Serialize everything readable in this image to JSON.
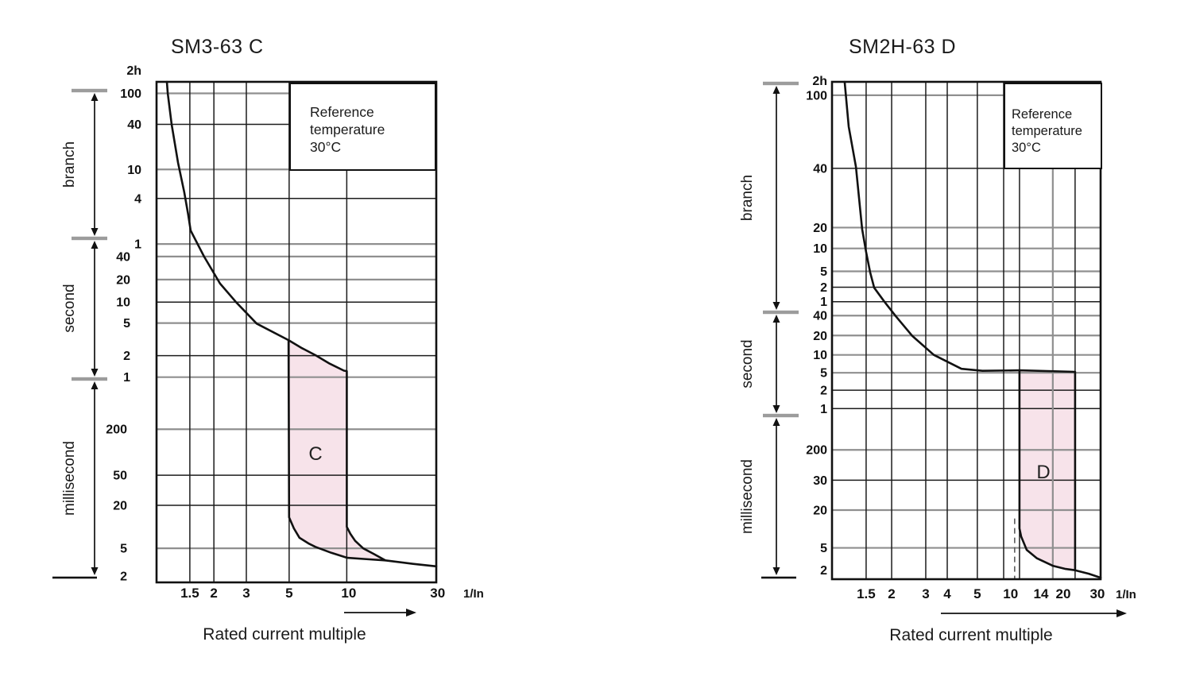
{
  "page": {
    "background": "#ffffff"
  },
  "chart_data": [
    {
      "type": "line",
      "id": "SM3-63-C",
      "title": "SM3-63 C",
      "reference_note_lines": [
        "Reference",
        "temperature",
        "30°C"
      ],
      "x_axis": {
        "caption": "Rated current multiple",
        "unit": "1/In",
        "range_multiple": [
          1,
          30
        ],
        "ticks": [
          {
            "label": "1.5",
            "line": 0.119,
            "lf": 0.119
          },
          {
            "label": "2",
            "line": 0.205,
            "lf": 0.205
          },
          {
            "label": "3",
            "line": 0.321,
            "lf": 0.321
          },
          {
            "label": "5",
            "line": 0.474,
            "lf": 0.474
          },
          {
            "label": "10",
            "line": 0.68,
            "lf": 0.687
          },
          {
            "label": "30",
            "line": null,
            "lf": 1.005
          }
        ],
        "extra_lines": [],
        "dashed_line": null
      },
      "y_axis": {
        "top_label": "2h",
        "ticks": [
          {
            "label": "100",
            "f": 0.023,
            "line": 0.023,
            "gray": true,
            "s": 0
          },
          {
            "label": "40",
            "f": 0.085,
            "line": 0.085,
            "gray": false,
            "s": 0
          },
          {
            "label": "10",
            "f": 0.175,
            "line": 0.175,
            "gray": true,
            "s": 0
          },
          {
            "label": "4",
            "f": 0.233,
            "line": 0.233,
            "gray": false,
            "s": 0
          },
          {
            "label": "1",
            "f": 0.324,
            "line": 0.324,
            "gray": true,
            "s": 0
          },
          {
            "label": "40",
            "f": 0.349,
            "line": 0.349,
            "gray": true,
            "s": 1
          },
          {
            "label": "20",
            "f": 0.395,
            "line": 0.395,
            "gray": true,
            "s": 1
          },
          {
            "label": "10",
            "f": 0.44,
            "line": 0.44,
            "gray": false,
            "s": 1
          },
          {
            "label": "5",
            "f": 0.482,
            "line": 0.482,
            "gray": true,
            "s": 1
          },
          {
            "label": "2",
            "f": 0.547,
            "line": 0.547,
            "gray": false,
            "s": 1
          },
          {
            "label": "1",
            "f": 0.59,
            "line": 0.59,
            "gray": true,
            "s": 1
          },
          {
            "label": "200",
            "f": 0.694,
            "line": 0.694,
            "gray": true,
            "s": 2
          },
          {
            "label": "50",
            "f": 0.786,
            "line": 0.786,
            "gray": false,
            "s": 2
          },
          {
            "label": "20",
            "f": 0.846,
            "line": 0.846,
            "gray": false,
            "s": 2
          },
          {
            "label": "5",
            "f": 0.932,
            "line": 0.932,
            "gray": true,
            "s": 2
          },
          {
            "label": "2",
            "f": 0.987,
            "line": null,
            "gray": false,
            "s": 2
          }
        ]
      },
      "time_sections": [
        {
          "name": "branch"
        },
        {
          "name": "second"
        },
        {
          "name": "millisecond"
        }
      ],
      "band": {
        "label": "C",
        "fill": "#f7e3ea",
        "trip_multiple_range": [
          5,
          10
        ],
        "polygon": [
          [
            0.472,
            0.516
          ],
          [
            0.52,
            0.532
          ],
          [
            0.568,
            0.546
          ],
          [
            0.619,
            0.563
          ],
          [
            0.67,
            0.577
          ],
          [
            0.68,
            0.578
          ],
          [
            0.68,
            0.889
          ],
          [
            0.693,
            0.903
          ],
          [
            0.71,
            0.917
          ],
          [
            0.739,
            0.932
          ],
          [
            0.776,
            0.943
          ],
          [
            0.818,
            0.956
          ],
          [
            0.761,
            0.954
          ],
          [
            0.682,
            0.951
          ],
          [
            0.625,
            0.941
          ],
          [
            0.568,
            0.929
          ],
          [
            0.543,
            0.922
          ],
          [
            0.511,
            0.911
          ],
          [
            0.491,
            0.892
          ],
          [
            0.474,
            0.87
          ]
        ]
      },
      "curves": {
        "upper_trip": [
          [
            0.037,
            0.0
          ],
          [
            0.04,
            0.023
          ],
          [
            0.054,
            0.085
          ],
          [
            0.077,
            0.162
          ],
          [
            0.099,
            0.22
          ],
          [
            0.113,
            0.265
          ],
          [
            0.122,
            0.297
          ],
          [
            0.17,
            0.349
          ],
          [
            0.227,
            0.403
          ],
          [
            0.284,
            0.44
          ],
          [
            0.358,
            0.483
          ],
          [
            0.472,
            0.516
          ]
        ],
        "lower_tail": [
          [
            0.818,
            0.956
          ],
          [
            0.917,
            0.963
          ],
          [
            1.0,
            0.968
          ]
        ]
      }
    },
    {
      "type": "line",
      "id": "SM2H-63-D",
      "title": "SM2H-63 D",
      "reference_note_lines": [
        "Reference",
        "temperature",
        "30°C"
      ],
      "x_axis": {
        "caption": "Rated current multiple",
        "unit": "1/In",
        "range_multiple": [
          1,
          30
        ],
        "ticks": [
          {
            "label": "1.5",
            "line": 0.127,
            "lf": 0.127
          },
          {
            "label": "2",
            "line": 0.222,
            "lf": 0.222
          },
          {
            "label": "3",
            "line": 0.349,
            "lf": 0.349
          },
          {
            "label": "4",
            "line": 0.429,
            "lf": 0.429
          },
          {
            "label": "5",
            "line": 0.541,
            "lf": 0.541
          },
          {
            "label": "10",
            "line": 0.639,
            "lf": 0.665
          },
          {
            "label": "14",
            "line": 0.822,
            "lf": 0.778,
            "gray": true
          },
          {
            "label": "20",
            "line": 0.905,
            "lf": 0.861
          },
          {
            "label": "30",
            "line": null,
            "lf": 0.988
          }
        ],
        "extra_lines": [
          0.698
        ],
        "dashed_line": {
          "f": 0.68,
          "y1": 0.878,
          "y2": 1.0
        }
      },
      "y_axis": {
        "top_label": "2h",
        "ticks": [
          {
            "label": "100",
            "f": 0.027,
            "line": 0.027,
            "gray": true,
            "s": 0
          },
          {
            "label": "40",
            "f": 0.174,
            "line": 0.174,
            "gray": false,
            "s": 0
          },
          {
            "label": "20",
            "f": 0.293,
            "line": 0.293,
            "gray": true,
            "s": 0
          },
          {
            "label": "10",
            "f": 0.335,
            "line": 0.335,
            "gray": true,
            "s": 0
          },
          {
            "label": "5",
            "f": 0.381,
            "line": 0.381,
            "gray": true,
            "s": 0
          },
          {
            "label": "2",
            "f": 0.413,
            "line": 0.413,
            "gray": false,
            "s": 0
          },
          {
            "label": "1",
            "f": 0.442,
            "line": 0.442,
            "gray": false,
            "s": 0
          },
          {
            "label": "40",
            "f": 0.47,
            "line": 0.47,
            "gray": true,
            "s": 1
          },
          {
            "label": "20",
            "f": 0.51,
            "line": 0.51,
            "gray": true,
            "s": 1
          },
          {
            "label": "10",
            "f": 0.549,
            "line": 0.549,
            "gray": true,
            "s": 1
          },
          {
            "label": "5",
            "f": 0.585,
            "line": 0.585,
            "gray": true,
            "s": 1
          },
          {
            "label": "2",
            "f": 0.62,
            "line": 0.62,
            "gray": false,
            "s": 1
          },
          {
            "label": "1",
            "f": 0.657,
            "line": 0.657,
            "gray": false,
            "s": 1
          },
          {
            "label": "200",
            "f": 0.74,
            "line": 0.74,
            "gray": true,
            "s": 2
          },
          {
            "label": "30",
            "f": 0.801,
            "line": 0.801,
            "gray": false,
            "s": 2
          },
          {
            "label": "20",
            "f": 0.861,
            "line": 0.861,
            "gray": true,
            "s": 2
          },
          {
            "label": "5",
            "f": 0.937,
            "line": 0.937,
            "gray": true,
            "s": 2
          },
          {
            "label": "2",
            "f": 0.982,
            "line": null,
            "gray": false,
            "s": 2
          }
        ]
      },
      "time_sections": [
        {
          "name": "branch"
        },
        {
          "name": "second"
        },
        {
          "name": "millisecond"
        }
      ],
      "band": {
        "label": "D",
        "fill": "#f7e3ea",
        "trip_multiple_range": [
          10,
          20
        ],
        "polygon": [
          [
            0.698,
            0.58
          ],
          [
            0.905,
            0.583
          ],
          [
            0.905,
            0.982
          ],
          [
            0.867,
            0.979
          ],
          [
            0.822,
            0.973
          ],
          [
            0.763,
            0.958
          ],
          [
            0.725,
            0.941
          ],
          [
            0.704,
            0.914
          ],
          [
            0.698,
            0.898
          ]
        ]
      },
      "curves": {
        "upper_trip": [
          [
            0.047,
            0.0
          ],
          [
            0.062,
            0.09
          ],
          [
            0.089,
            0.171
          ],
          [
            0.112,
            0.296
          ],
          [
            0.127,
            0.342
          ],
          [
            0.142,
            0.383
          ],
          [
            0.157,
            0.414
          ],
          [
            0.195,
            0.442
          ],
          [
            0.237,
            0.471
          ],
          [
            0.299,
            0.511
          ],
          [
            0.379,
            0.549
          ],
          [
            0.482,
            0.577
          ],
          [
            0.56,
            0.581
          ],
          [
            0.698,
            0.58
          ]
        ],
        "lower_tail": [
          [
            0.905,
            0.982
          ],
          [
            0.956,
            0.989
          ],
          [
            1.0,
            0.997
          ]
        ]
      }
    }
  ]
}
